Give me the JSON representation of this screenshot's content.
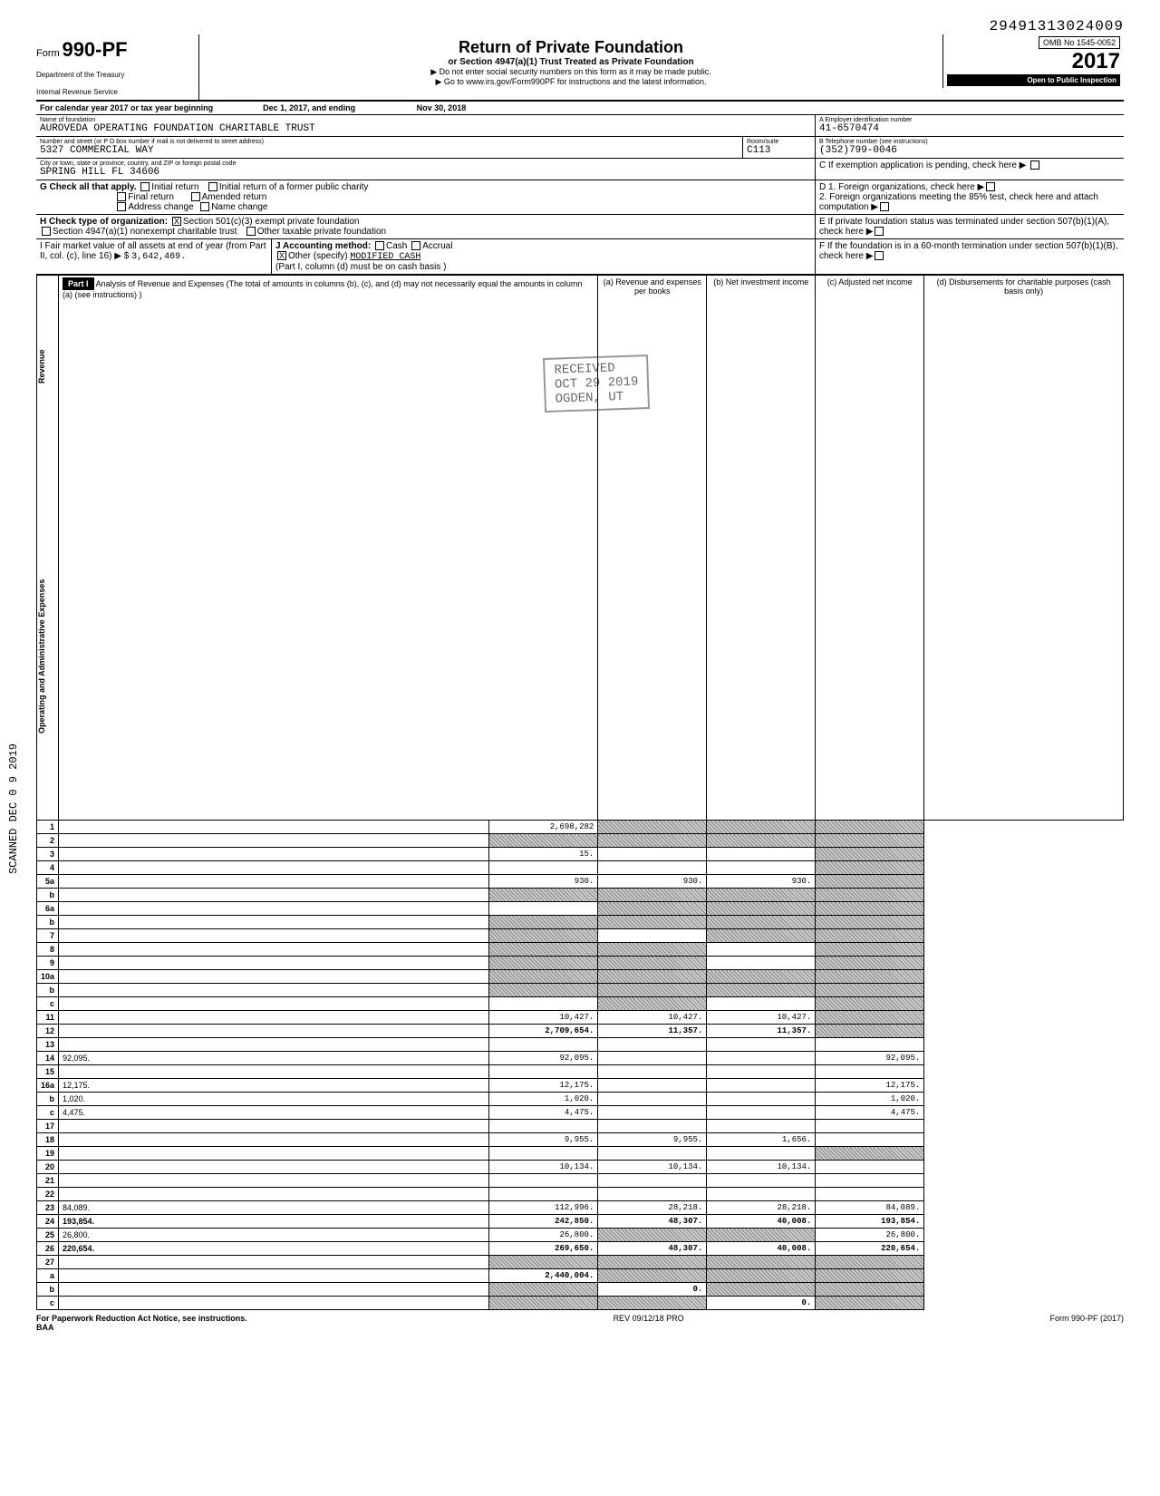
{
  "doc_id": "29491313024009",
  "header": {
    "form_prefix": "Form",
    "form_number": "990-PF",
    "dept1": "Department of the Treasury",
    "dept2": "Internal Revenue Service",
    "title": "Return of Private Foundation",
    "subtitle": "or Section 4947(a)(1) Trust Treated as Private Foundation",
    "warn": "▶ Do not enter social security numbers on this form as it may be made public.",
    "goto": "▶ Go to www.irs.gov/Form990PF for instructions and the latest information.",
    "omb": "OMB No  1545-0052",
    "year": "2017",
    "inspection": "Open to Public Inspection"
  },
  "tax_year": {
    "label": "For calendar year 2017 or tax year beginning",
    "begin": "Dec  1, 2017, and ending",
    "end": "Nov 30, 2018"
  },
  "identity": {
    "name_label": "Name of foundation",
    "name": "AUROVEDA OPERATING FOUNDATION CHARITABLE TRUST",
    "addr_label": "Number and street (or P O  box number if mail is not delivered to street address)",
    "street": "5327 COMMERCIAL WAY",
    "room_label": "Room/suite",
    "room": "C113",
    "city_label": "City or town, state or province, country, and ZIP or foreign postal code",
    "city": "SPRING HILL FL 34606",
    "ein_label": "A  Employer identification number",
    "ein": "41-6570474",
    "phone_label": "B  Telephone number (see instructions)",
    "phone": "(352)799-0046",
    "c_label": "C  If exemption application is pending, check here ▶"
  },
  "section_g": {
    "label": "G  Check all that apply.",
    "opts": [
      "Initial return",
      "Initial return of a former public charity",
      "Final return",
      "Amended return",
      "Address change",
      "Name change"
    ]
  },
  "section_d": {
    "d1": "D  1. Foreign organizations, check here",
    "d2": "2. Foreign organizations meeting the 85% test, check here and attach computation"
  },
  "section_h": {
    "label": "H  Check type of organization:",
    "opt1": "Section 501(c)(3) exempt private foundation",
    "opt2": "Section 4947(a)(1) nonexempt charitable trust",
    "opt3": "Other taxable private foundation"
  },
  "section_e": "E  If private foundation status was terminated under section 507(b)(1)(A), check here",
  "section_i": {
    "label": "I   Fair market value of all assets at end of year  (from Part II, col. (c), line 16) ▶ $",
    "value": "3,642,469."
  },
  "section_j": {
    "label": "J  Accounting method:",
    "cash": "Cash",
    "accrual": "Accrual",
    "other": "Other (specify)",
    "other_val": "MODIFIED CASH",
    "note": "(Part I, column (d) must be on cash basis )"
  },
  "section_f": "F  If the foundation is in a 60-month termination under section 507(b)(1)(B), check here",
  "part1": {
    "title": "Part I",
    "desc": "Analysis of Revenue and Expenses (The total of amounts in columns (b), (c), and (d) may not necessarily equal the amounts in column (a) (see instructions) )",
    "col_a": "(a) Revenue and expenses per books",
    "col_b": "(b) Net investment income",
    "col_c": "(c) Adjusted net income",
    "col_d": "(d) Disbursements for charitable purposes (cash basis only)"
  },
  "side_labels": {
    "revenue": "Revenue",
    "expenses": "Operating and Administrative Expenses"
  },
  "rows": [
    {
      "n": "1",
      "d": "",
      "a": "2,698,282",
      "b": "",
      "c": "",
      "shade_b": true,
      "shade_c": true,
      "shade_d": true
    },
    {
      "n": "2",
      "d": "",
      "a": "",
      "b": "",
      "c": "",
      "shade_a": true,
      "shade_b": true,
      "shade_c": true,
      "shade_d": true
    },
    {
      "n": "3",
      "d": "",
      "a": "15.",
      "b": "",
      "c": "",
      "shade_d": true
    },
    {
      "n": "4",
      "d": "",
      "a": "",
      "b": "",
      "c": "",
      "shade_d": true
    },
    {
      "n": "5a",
      "d": "",
      "a": "930.",
      "b": "930.",
      "c": "930.",
      "shade_d": true
    },
    {
      "n": "b",
      "d": "",
      "a": "",
      "b": "",
      "c": "",
      "shade_a": true,
      "shade_b": true,
      "shade_c": true,
      "shade_d": true
    },
    {
      "n": "6a",
      "d": "",
      "a": "",
      "b": "",
      "c": "",
      "shade_b": true,
      "shade_c": true,
      "shade_d": true
    },
    {
      "n": "b",
      "d": "",
      "a": "",
      "b": "",
      "c": "",
      "shade_a": true,
      "shade_b": true,
      "shade_c": true,
      "shade_d": true
    },
    {
      "n": "7",
      "d": "",
      "a": "",
      "b": "",
      "c": "",
      "shade_a": true,
      "shade_c": true,
      "shade_d": true
    },
    {
      "n": "8",
      "d": "",
      "a": "",
      "b": "",
      "c": "",
      "shade_a": true,
      "shade_b": true,
      "shade_d": true
    },
    {
      "n": "9",
      "d": "",
      "a": "",
      "b": "",
      "c": "",
      "shade_a": true,
      "shade_b": true,
      "shade_d": true
    },
    {
      "n": "10a",
      "d": "",
      "a": "",
      "b": "",
      "c": "",
      "shade_a": true,
      "shade_b": true,
      "shade_c": true,
      "shade_d": true
    },
    {
      "n": "b",
      "d": "",
      "a": "",
      "b": "",
      "c": "",
      "shade_a": true,
      "shade_b": true,
      "shade_c": true,
      "shade_d": true
    },
    {
      "n": "c",
      "d": "",
      "a": "",
      "b": "",
      "c": "",
      "shade_b": true,
      "shade_d": true
    },
    {
      "n": "11",
      "d": "",
      "a": "10,427.",
      "b": "10,427.",
      "c": "10,427.",
      "shade_d": true
    },
    {
      "n": "12",
      "d": "",
      "a": "2,709,654.",
      "b": "11,357.",
      "c": "11,357.",
      "shade_d": true,
      "bold": true
    },
    {
      "n": "13",
      "d": "",
      "a": "",
      "b": "",
      "c": ""
    },
    {
      "n": "14",
      "d": "92,095.",
      "a": "92,095.",
      "b": "",
      "c": ""
    },
    {
      "n": "15",
      "d": "",
      "a": "",
      "b": "",
      "c": ""
    },
    {
      "n": "16a",
      "d": "12,175.",
      "a": "12,175.",
      "b": "",
      "c": ""
    },
    {
      "n": "b",
      "d": "1,020.",
      "a": "1,020.",
      "b": "",
      "c": ""
    },
    {
      "n": "c",
      "d": "4,475.",
      "a": "4,475.",
      "b": "",
      "c": ""
    },
    {
      "n": "17",
      "d": "",
      "a": "",
      "b": "",
      "c": ""
    },
    {
      "n": "18",
      "d": "",
      "a": "9,955.",
      "b": "9,955.",
      "c": "1,656."
    },
    {
      "n": "19",
      "d": "",
      "a": "",
      "b": "",
      "c": "",
      "shade_d": true
    },
    {
      "n": "20",
      "d": "",
      "a": "10,134.",
      "b": "10,134.",
      "c": "10,134."
    },
    {
      "n": "21",
      "d": "",
      "a": "",
      "b": "",
      "c": ""
    },
    {
      "n": "22",
      "d": "",
      "a": "",
      "b": "",
      "c": ""
    },
    {
      "n": "23",
      "d": "84,089.",
      "a": "112,996.",
      "b": "28,218.",
      "c": "28,218."
    },
    {
      "n": "24",
      "d": "193,854.",
      "a": "242,850.",
      "b": "48,307.",
      "c": "40,008.",
      "bold": true
    },
    {
      "n": "25",
      "d": "26,800.",
      "a": "26,800.",
      "b": "",
      "c": "",
      "shade_b": true,
      "shade_c": true
    },
    {
      "n": "26",
      "d": "220,654.",
      "a": "269,650.",
      "b": "48,307.",
      "c": "40,008.",
      "bold": true
    },
    {
      "n": "27",
      "d": "",
      "a": "",
      "b": "",
      "c": "",
      "shade_a": true,
      "shade_b": true,
      "shade_c": true,
      "shade_d": true
    },
    {
      "n": "a",
      "d": "",
      "a": "2,440,004.",
      "b": "",
      "c": "",
      "shade_b": true,
      "shade_c": true,
      "shade_d": true,
      "bold": true
    },
    {
      "n": "b",
      "d": "",
      "a": "",
      "b": "0.",
      "c": "",
      "shade_a": true,
      "shade_c": true,
      "shade_d": true,
      "bold": true
    },
    {
      "n": "c",
      "d": "",
      "a": "",
      "b": "",
      "c": "0.",
      "shade_a": true,
      "shade_b": true,
      "shade_d": true,
      "bold": true
    }
  ],
  "footer": {
    "left": "For Paperwork Reduction Act Notice, see instructions.",
    "baa": "BAA",
    "center": "REV 09/12/18 PRO",
    "right": "Form 990-PF (2017)"
  },
  "stamps": {
    "received": "RECEIVED",
    "date": "OCT 29 2019",
    "ogden": "OGDEN, UT",
    "scanned": "SCANNED  DEC 0 9 2019"
  }
}
